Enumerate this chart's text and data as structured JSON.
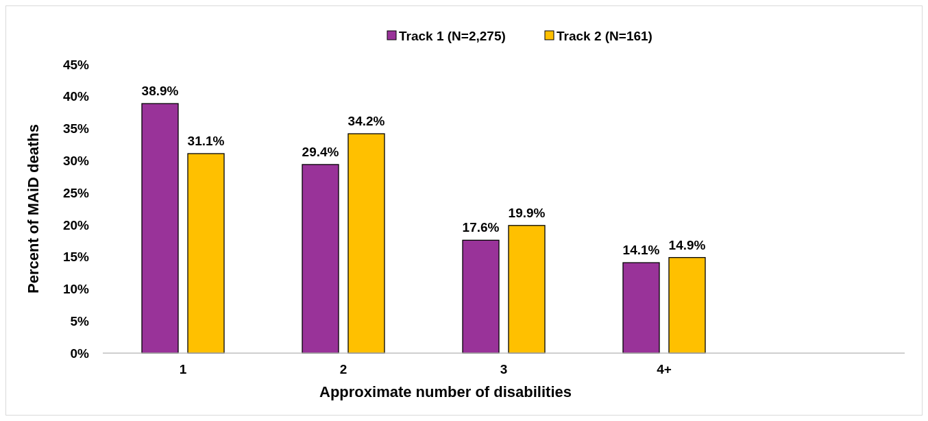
{
  "chart_data": {
    "type": "bar",
    "xlabel": "Approximate number of disabilities",
    "ylabel": "Percent of MAiD deaths",
    "categories": [
      "1",
      "2",
      "3",
      "4+",
      null
    ],
    "series": [
      {
        "name": "Track 1 (N=2,275)",
        "color": "#993399",
        "values": [
          38.9,
          29.4,
          17.6,
          14.1,
          null
        ],
        "value_labels": [
          "38.9%",
          "29.4%",
          "17.6%",
          "14.1%",
          null
        ]
      },
      {
        "name": "Track 2 (N=161)",
        "color": "#ffc000",
        "values": [
          31.1,
          34.2,
          19.9,
          14.9,
          null
        ],
        "value_labels": [
          "31.1%",
          "34.2%",
          "19.9%",
          "14.9%",
          null
        ]
      }
    ],
    "ylim": [
      0,
      45
    ],
    "yticks": [
      {
        "value": 0,
        "label": "0%"
      },
      {
        "value": 5,
        "label": "5%"
      },
      {
        "value": 10,
        "label": "10%"
      },
      {
        "value": 15,
        "label": "15%"
      },
      {
        "value": 20,
        "label": "20%"
      },
      {
        "value": 25,
        "label": "25%"
      },
      {
        "value": 30,
        "label": "30%"
      },
      {
        "value": 35,
        "label": "35%"
      },
      {
        "value": 40,
        "label": "40%"
      },
      {
        "value": 45,
        "label": "45%"
      }
    ],
    "legend": "top",
    "grid": false
  }
}
